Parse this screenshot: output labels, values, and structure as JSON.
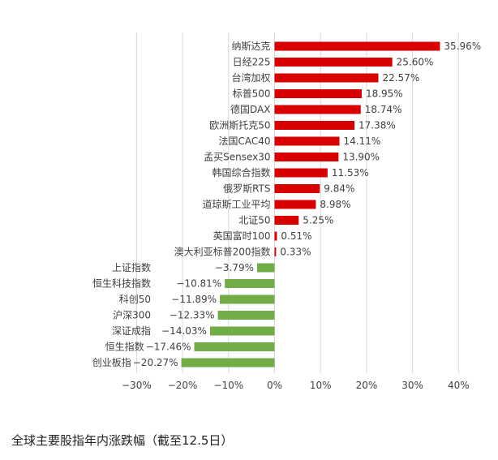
{
  "caption": "全球主要股指年内涨跌幅（截至12.5日）",
  "colors": {
    "positive": "#d90000",
    "negative": "#70ad47",
    "grid": "#d9d9d9",
    "text": "#404040"
  },
  "chart_data": {
    "type": "bar",
    "orientation": "horizontal",
    "title": "",
    "xlabel": "",
    "ylabel": "",
    "xlim": [
      -30,
      40
    ],
    "xticks": [
      -30,
      -20,
      -10,
      0,
      10,
      20,
      30,
      40
    ],
    "xtick_labels": [
      "−30%",
      "−20%",
      "−10%",
      "0%",
      "10%",
      "20%",
      "30%",
      "40%"
    ],
    "grid": "vertical",
    "categories": [
      "纳斯达克",
      "日经225",
      "台湾加权",
      "标普500",
      "德国DAX",
      "欧洲斯托克50",
      "法国CAC40",
      "孟买Sensex30",
      "韩国综合指数",
      "俄罗斯RTS",
      "道琼斯工业平均",
      "北证50",
      "英国富时100",
      "澳大利亚标普200指数",
      "上证指数",
      "恒生科技指数",
      "科创50",
      "沪深300",
      "深证成指",
      "恒生指数",
      "创业板指"
    ],
    "values": [
      35.96,
      25.6,
      22.57,
      18.95,
      18.74,
      17.38,
      14.11,
      13.9,
      11.53,
      9.84,
      8.98,
      5.25,
      0.51,
      0.33,
      -3.79,
      -10.81,
      -11.89,
      -12.33,
      -14.03,
      -17.46,
      -20.27
    ],
    "value_labels": [
      "35.96%",
      "25.60%",
      "22.57%",
      "18.95%",
      "18.74%",
      "17.38%",
      "14.11%",
      "13.90%",
      "11.53%",
      "9.84%",
      "8.98%",
      "5.25%",
      "0.51%",
      "0.33%",
      "−3.79%",
      "−10.81%",
      "−11.89%",
      "−12.33%",
      "−14.03%",
      "−17.46%",
      "−20.27%"
    ]
  }
}
